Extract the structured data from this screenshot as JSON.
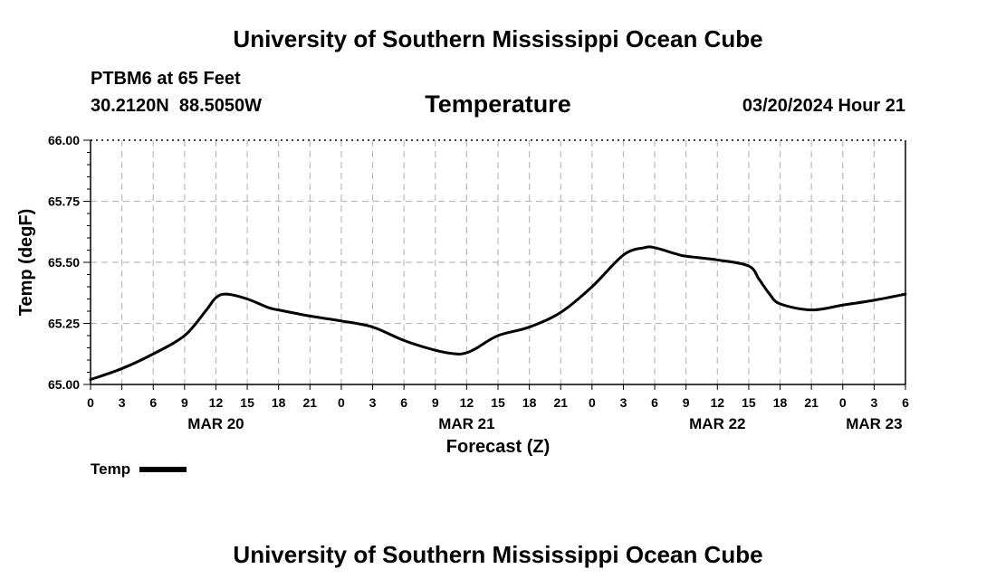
{
  "header": {
    "title": "University of Southern Mississippi Ocean Cube",
    "station": "PTBM6 at 65 Feet",
    "coordinates": "30.2120N  88.5050W",
    "datetime": "03/20/2024 Hour 21"
  },
  "footer": {
    "title": "University of Southern Mississippi Ocean Cube"
  },
  "colors": {
    "line": "#000000",
    "grid": "#bbbbbb",
    "background": "#ffffff"
  },
  "chart_data": {
    "type": "line",
    "title": "Temperature",
    "xlabel": "Forecast (Z)",
    "ylabel": "Temp (degF)",
    "ylim": [
      65.0,
      66.0
    ],
    "yticks": [
      "65.00",
      "65.25",
      "65.50",
      "65.75",
      "66.00"
    ],
    "xlim_hours": [
      0,
      78
    ],
    "xtick_labels": [
      "0",
      "3",
      "6",
      "9",
      "12",
      "15",
      "18",
      "21",
      "0",
      "3",
      "6",
      "9",
      "12",
      "15",
      "18",
      "21",
      "0",
      "3",
      "6",
      "9",
      "12",
      "15",
      "18",
      "21",
      "0",
      "3",
      "6"
    ],
    "date_labels": [
      {
        "label": "MAR 20",
        "hour": 12
      },
      {
        "label": "MAR 21",
        "hour": 36
      },
      {
        "label": "MAR 22",
        "hour": 60
      },
      {
        "label": "MAR 23",
        "hour": 75
      }
    ],
    "grid": true,
    "legend": [
      {
        "label": "Temp",
        "position": "bottom-left"
      }
    ],
    "series": [
      {
        "name": "Temp",
        "x": [
          0,
          3,
          6,
          9,
          11,
          12,
          13,
          15,
          17,
          18,
          21,
          24,
          27,
          30,
          33,
          35,
          36,
          37,
          39,
          42,
          45,
          48,
          51,
          53,
          54,
          56,
          57,
          60,
          63,
          64,
          65,
          66,
          69,
          72,
          75,
          78
        ],
        "y": [
          65.02,
          65.065,
          65.125,
          65.2,
          65.3,
          65.355,
          65.37,
          65.35,
          65.315,
          65.305,
          65.28,
          65.26,
          65.235,
          65.18,
          65.14,
          65.125,
          65.13,
          65.15,
          65.2,
          65.235,
          65.295,
          65.4,
          65.53,
          65.56,
          65.56,
          65.535,
          65.525,
          65.51,
          65.485,
          65.43,
          65.37,
          65.33,
          65.305,
          65.325,
          65.345,
          65.37
        ]
      }
    ]
  }
}
